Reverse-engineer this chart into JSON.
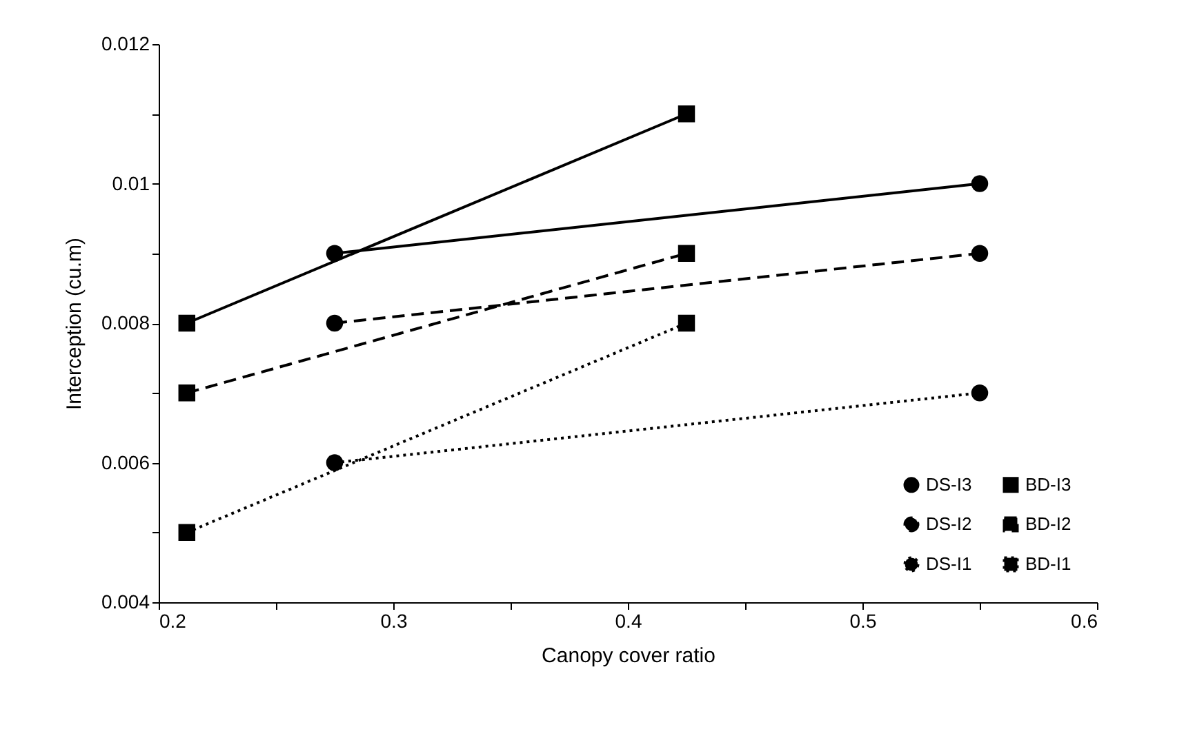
{
  "chart_data": {
    "type": "line",
    "xlabel": "Canopy cover ratio",
    "ylabel": "Interception (cu.m)",
    "xlim": [
      0.2,
      0.6
    ],
    "xticks": [
      0.2,
      {
        "value": 0.25,
        "label": null
      },
      0.3,
      {
        "value": 0.35,
        "label": null
      },
      0.4,
      {
        "value": 0.45,
        "label": null
      },
      0.5,
      {
        "value": 0.55,
        "label": null
      },
      0.6
    ],
    "ylim": [
      0.004,
      0.012
    ],
    "yticks": [
      0.004,
      {
        "value": 0.005,
        "label": null
      },
      0.006,
      {
        "value": 0.007,
        "label": null
      },
      0.008,
      {
        "value": 0.009,
        "label": null
      },
      0.01,
      {
        "value": 0.011,
        "label": null
      },
      0.012
    ],
    "grid": false,
    "legend": "bottom right",
    "series": [
      {
        "name": "DS-I3",
        "color": "#000000",
        "marker": "circle",
        "line_style": "solid",
        "x": [
          0.275,
          0.55
        ],
        "values": [
          0.009,
          0.01
        ]
      },
      {
        "name": "BD-I3",
        "color": "#000000",
        "marker": "square",
        "line_style": "solid",
        "x": [
          0.212,
          0.425
        ],
        "values": [
          0.008,
          0.011
        ]
      },
      {
        "name": "DS-I2",
        "color": "#000000",
        "marker": "circle",
        "line_style": "dashed",
        "x": [
          0.275,
          0.55
        ],
        "values": [
          0.008,
          0.009
        ]
      },
      {
        "name": "BD-I2",
        "color": "#000000",
        "marker": "square",
        "line_style": "dashed",
        "x": [
          0.212,
          0.425
        ],
        "values": [
          0.007,
          0.009
        ]
      },
      {
        "name": "DS-I1",
        "color": "#000000",
        "marker": "circle",
        "line_style": "dotted",
        "x": [
          0.275,
          0.55
        ],
        "values": [
          0.006,
          0.007
        ]
      },
      {
        "name": "BD-I1",
        "color": "#000000",
        "marker": "square",
        "line_style": "dotted",
        "x": [
          0.212,
          0.425
        ],
        "values": [
          0.005,
          0.008
        ]
      }
    ]
  }
}
